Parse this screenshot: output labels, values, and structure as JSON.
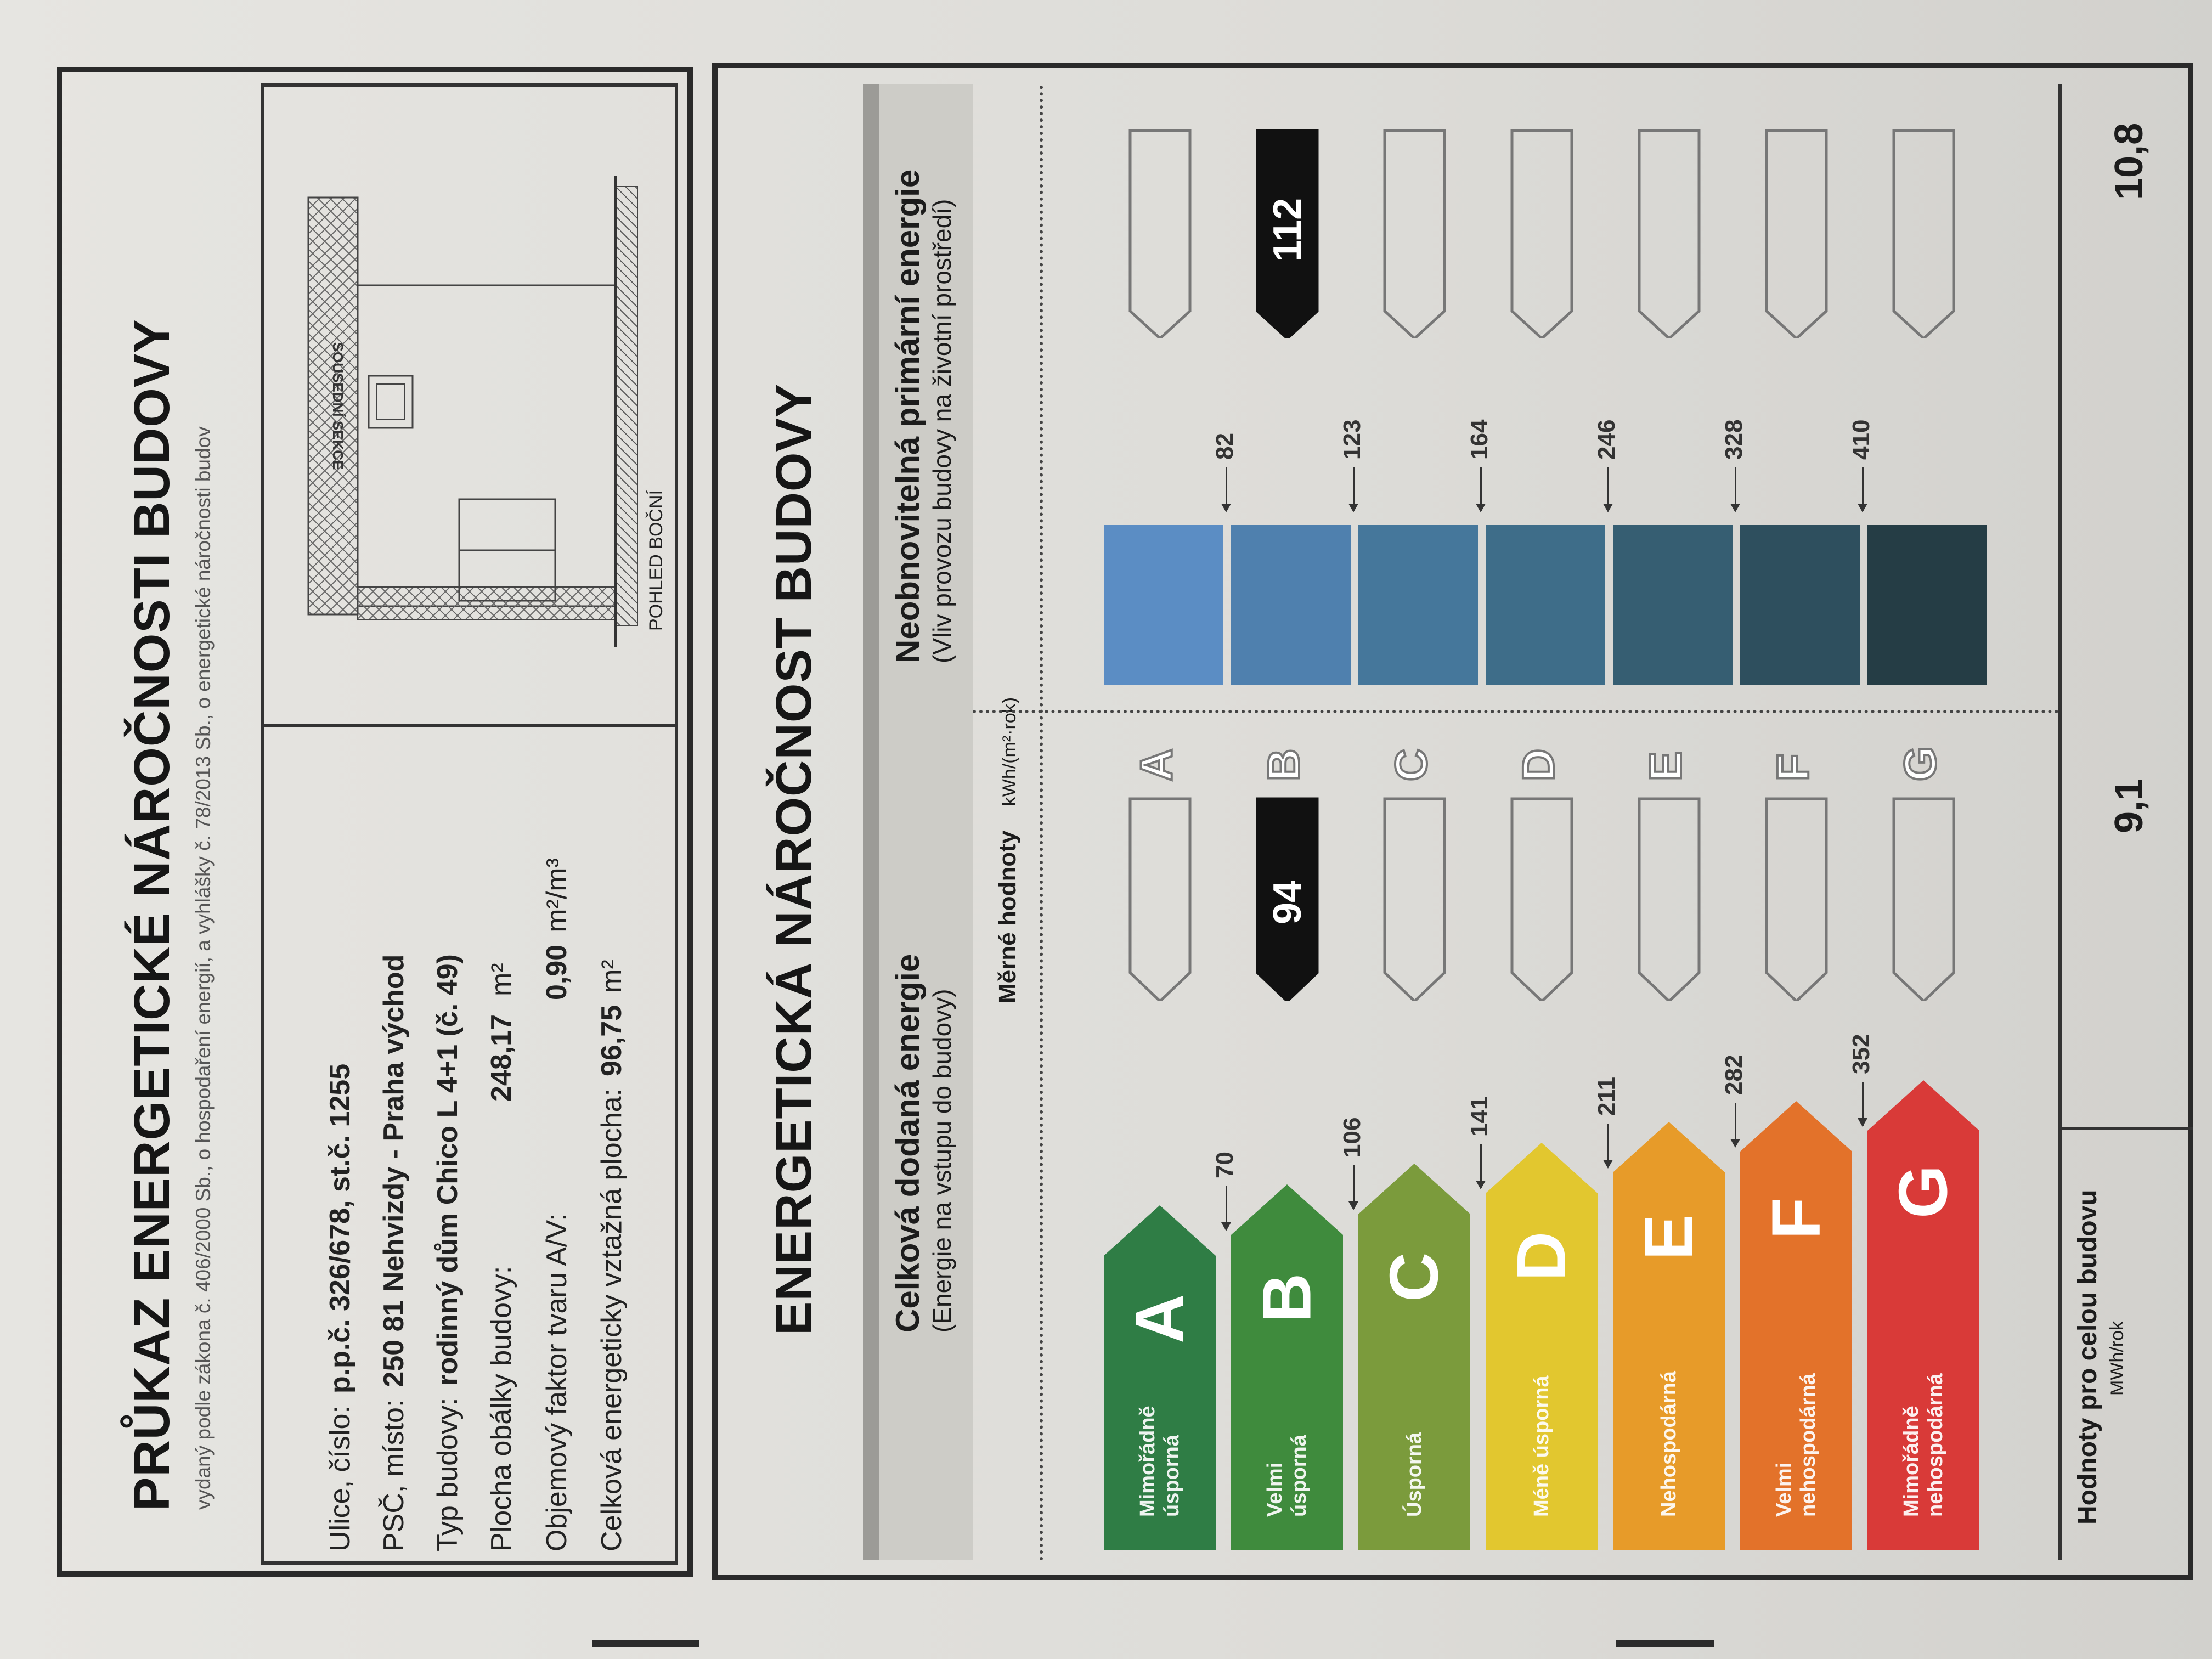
{
  "header": {
    "title": "PRŮKAZ ENERGETICKÉ NÁROČNOSTI BUDOVY",
    "subtitle": "vydaný podle zákona č. 406/2000 Sb., o hospodaření energií, a vyhlášky č. 78/2013 Sb., o energetické náročnosti budov"
  },
  "info": [
    {
      "label": "Ulice, číslo:",
      "value": "p.p.č. 326/678, st.č. 1255",
      "unit": ""
    },
    {
      "label": "PSČ, místo:",
      "value": "250 81 Nehvizdy - Praha východ",
      "unit": ""
    },
    {
      "label": "Typ budovy:",
      "value": "rodinný dům Chico L 4+1 (č. 49)",
      "unit": ""
    },
    {
      "label": "Plocha obálky budovy:",
      "value": "248,17",
      "unit": "m²"
    },
    {
      "label": "Objemový faktor tvaru A/V:",
      "value": "0,90",
      "unit": "m²/m³"
    },
    {
      "label": "Celková energeticky vztažná plocha:",
      "value": "96,75",
      "unit": "m²"
    }
  ],
  "drawing": {
    "neighbor_label": "SOUSEDNÍ SEKCE",
    "view_label": "POHLED BOČNÍ"
  },
  "rating": {
    "title": "ENERGETICKÁ NÁROČNOST BUDOVY",
    "left_heading": "Celková dodaná energie",
    "left_sub": "(Energie na vstupu do budovy)",
    "right_heading": "Neobnovitelná primární energie",
    "right_sub": "(Vliv provozu budovy na životní prostředí)",
    "specific_label": "Měrné hodnoty",
    "specific_unit": "kWh/(m²·rok)",
    "classes": [
      {
        "letter": "A",
        "label": "Mimořádně\núsporná",
        "color": "#2f7d45"
      },
      {
        "letter": "B",
        "label": "Velmi\núsporná",
        "color": "#3f8b3d"
      },
      {
        "letter": "C",
        "label": "Úsporná",
        "color": "#7b9b3c"
      },
      {
        "letter": "D",
        "label": "Méně úsporná",
        "color": "#e2c72f"
      },
      {
        "letter": "E",
        "label": "Nehospodárná",
        "color": "#e79b29"
      },
      {
        "letter": "F",
        "label": "Velmi\nnehospodárná",
        "color": "#e3722a"
      },
      {
        "letter": "G",
        "label": "Mimořádně\nnehospodárná",
        "color": "#d93a38"
      }
    ],
    "delivered_thresholds": [
      "70",
      "106",
      "141",
      "211",
      "282",
      "352"
    ],
    "primary_thresholds": [
      "82",
      "123",
      "164",
      "246",
      "328",
      "410"
    ],
    "primary_colors": [
      "#5b8dc4",
      "#4f80ae",
      "#45779b",
      "#3e6d89",
      "#365e72",
      "#2e4f5e",
      "#253d45"
    ],
    "delivered_value": "94",
    "delivered_class": "B",
    "primary_value": "112",
    "primary_class": "B"
  },
  "totals": {
    "label": "Hodnoty pro celou budovu",
    "unit": "MWh/rok",
    "delivered": "9,1",
    "primary": "10,8"
  }
}
